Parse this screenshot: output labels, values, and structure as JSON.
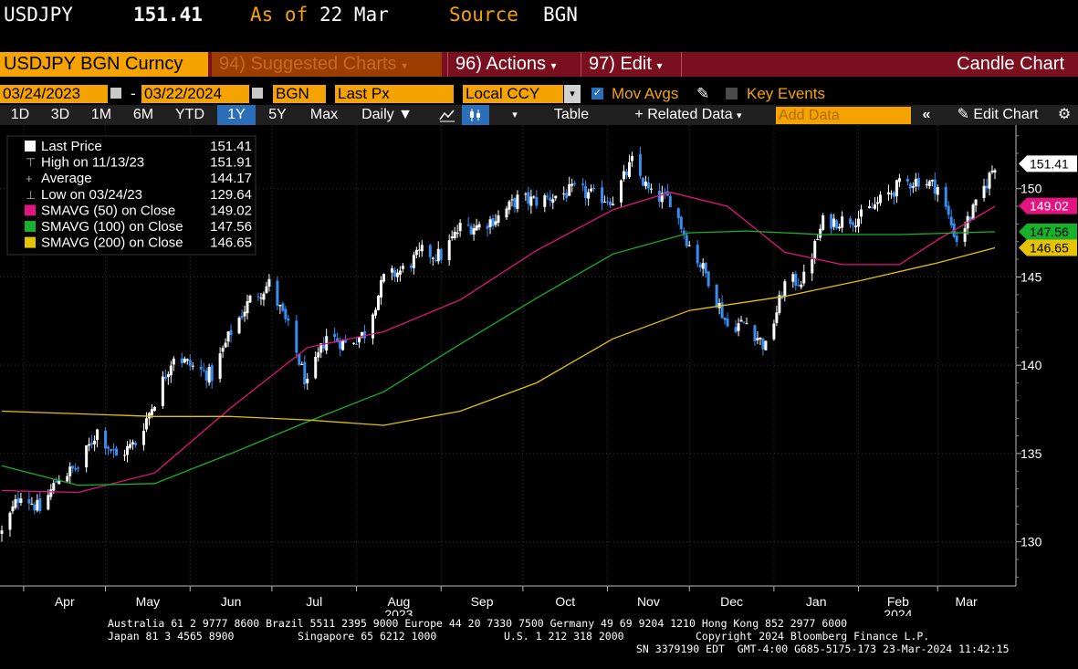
{
  "header": {
    "ticker": "USDJPY",
    "price": "151.41",
    "as_of_label": "As of",
    "as_of_date": "22 Mar",
    "source_label": "Source",
    "source_value": "BGN"
  },
  "toolbar": {
    "security": "USDJPY BGN Curncy",
    "suggested": "94) Suggested Charts",
    "actions": "96) Actions",
    "edit": "97) Edit",
    "chart_type": "Candle Chart"
  },
  "params": {
    "start_date": "03/24/2023",
    "dash": "-",
    "end_date": "03/22/2024",
    "source": "BGN",
    "field": "Last Px",
    "currency": "Local CCY",
    "mov_avgs": "Mov Avgs",
    "key_events": "Key Events"
  },
  "periods": {
    "items": [
      "1D",
      "3D",
      "1M",
      "6M",
      "YTD",
      "1Y",
      "5Y",
      "Max"
    ],
    "selected": "1Y",
    "frequency": "Daily",
    "table": "Table",
    "related": "+ Related Data",
    "add_data_placeholder": "Add Data",
    "edit_chart": "Edit Chart"
  },
  "colors": {
    "orange": "#f5a300",
    "candle_up": "#ffffff",
    "candle_down": "#3a8df0",
    "sma50": "#e2147f",
    "sma100": "#18b02c",
    "sma200": "#e6c300",
    "toolbar_red": "#7a0f20",
    "selected_blue": "#2a6fb7"
  },
  "legend": [
    {
      "label": "Last Price",
      "value": "151.41"
    },
    {
      "label": "High on 11/13/23",
      "value": "151.91"
    },
    {
      "label": "Average",
      "value": "144.17"
    },
    {
      "label": "Low on 03/24/23",
      "value": "129.64"
    },
    {
      "label": "SMAVG (50)  on Close",
      "value": "149.02"
    },
    {
      "label": "SMAVG (100)  on Close",
      "value": "147.56"
    },
    {
      "label": "SMAVG (200)  on Close",
      "value": "146.65"
    }
  ],
  "chart_data": {
    "type": "candlestick",
    "title": "USDJPY",
    "ylim": [
      127.5,
      153.5
    ],
    "yticks": [
      130,
      135,
      140,
      145,
      150
    ],
    "x_months": [
      "Apr",
      "May",
      "Jun",
      "Jul",
      "Aug",
      "Sep",
      "Oct",
      "Nov",
      "Dec",
      "Jan",
      "Feb",
      "Mar"
    ],
    "year_labels": [
      {
        "label": "2023",
        "month": "Aug"
      },
      {
        "label": "2024",
        "month": "Feb"
      }
    ],
    "x_range": [
      "2023-03-24",
      "2024-03-22"
    ],
    "close_path": [
      [
        "2023-03-24",
        130.5
      ],
      [
        "2023-03-31",
        132.8
      ],
      [
        "2023-04-07",
        131.8
      ],
      [
        "2023-04-14",
        133.7
      ],
      [
        "2023-04-21",
        134.2
      ],
      [
        "2023-04-28",
        136.3
      ],
      [
        "2023-05-05",
        134.8
      ],
      [
        "2023-05-12",
        135.6
      ],
      [
        "2023-05-19",
        138.0
      ],
      [
        "2023-05-26",
        140.6
      ],
      [
        "2023-06-02",
        139.9
      ],
      [
        "2023-06-09",
        139.4
      ],
      [
        "2023-06-16",
        141.9
      ],
      [
        "2023-06-23",
        143.7
      ],
      [
        "2023-06-30",
        144.6
      ],
      [
        "2023-07-07",
        142.1
      ],
      [
        "2023-07-14",
        138.8
      ],
      [
        "2023-07-21",
        141.7
      ],
      [
        "2023-07-28",
        141.2
      ],
      [
        "2023-08-04",
        141.8
      ],
      [
        "2023-08-11",
        144.9
      ],
      [
        "2023-08-18",
        145.4
      ],
      [
        "2023-08-25",
        146.4
      ],
      [
        "2023-09-01",
        146.2
      ],
      [
        "2023-09-08",
        147.8
      ],
      [
        "2023-09-15",
        147.9
      ],
      [
        "2023-09-22",
        148.4
      ],
      [
        "2023-09-29",
        149.4
      ],
      [
        "2023-10-06",
        149.3
      ],
      [
        "2023-10-13",
        149.6
      ],
      [
        "2023-10-20",
        149.9
      ],
      [
        "2023-10-27",
        149.6
      ],
      [
        "2023-11-03",
        149.4
      ],
      [
        "2023-11-10",
        151.5
      ],
      [
        "2023-11-17",
        149.6
      ],
      [
        "2023-11-24",
        149.4
      ],
      [
        "2023-12-01",
        146.8
      ],
      [
        "2023-12-08",
        144.9
      ],
      [
        "2023-12-15",
        142.2
      ],
      [
        "2023-12-22",
        142.4
      ],
      [
        "2023-12-29",
        141.0
      ],
      [
        "2024-01-05",
        144.6
      ],
      [
        "2024-01-12",
        144.9
      ],
      [
        "2024-01-19",
        148.1
      ],
      [
        "2024-01-26",
        148.2
      ],
      [
        "2024-02-02",
        148.4
      ],
      [
        "2024-02-09",
        149.3
      ],
      [
        "2024-02-16",
        150.2
      ],
      [
        "2024-02-23",
        150.5
      ],
      [
        "2024-03-01",
        150.1
      ],
      [
        "2024-03-08",
        147.1
      ],
      [
        "2024-03-15",
        149.0
      ],
      [
        "2024-03-22",
        151.4
      ]
    ],
    "series": [
      {
        "name": "SMAVG (50)",
        "points": [
          [
            "2023-03-24",
            132.9
          ],
          [
            "2023-04-21",
            132.8
          ],
          [
            "2023-05-19",
            133.9
          ],
          [
            "2023-06-16",
            137.6
          ],
          [
            "2023-07-14",
            141.0
          ],
          [
            "2023-08-11",
            141.9
          ],
          [
            "2023-09-08",
            143.7
          ],
          [
            "2023-10-06",
            146.5
          ],
          [
            "2023-11-03",
            148.8
          ],
          [
            "2023-11-24",
            149.8
          ],
          [
            "2023-12-15",
            149.0
          ],
          [
            "2024-01-05",
            146.4
          ],
          [
            "2024-01-26",
            145.7
          ],
          [
            "2024-02-16",
            145.7
          ],
          [
            "2024-03-01",
            147.1
          ],
          [
            "2024-03-22",
            149.0
          ]
        ]
      },
      {
        "name": "SMAVG (100)",
        "points": [
          [
            "2023-03-24",
            134.3
          ],
          [
            "2023-04-21",
            133.2
          ],
          [
            "2023-05-19",
            133.3
          ],
          [
            "2023-06-16",
            135.0
          ],
          [
            "2023-07-14",
            136.8
          ],
          [
            "2023-08-11",
            138.5
          ],
          [
            "2023-09-08",
            141.2
          ],
          [
            "2023-10-06",
            143.8
          ],
          [
            "2023-11-03",
            146.3
          ],
          [
            "2023-12-01",
            147.5
          ],
          [
            "2023-12-22",
            147.6
          ],
          [
            "2024-01-19",
            147.4
          ],
          [
            "2024-02-16",
            147.4
          ],
          [
            "2024-03-22",
            147.56
          ]
        ]
      },
      {
        "name": "SMAVG (200)",
        "points": [
          [
            "2023-03-24",
            137.4
          ],
          [
            "2023-05-19",
            137.1
          ],
          [
            "2023-06-16",
            137.1
          ],
          [
            "2023-07-14",
            136.9
          ],
          [
            "2023-08-11",
            136.6
          ],
          [
            "2023-09-08",
            137.4
          ],
          [
            "2023-10-06",
            139.0
          ],
          [
            "2023-11-03",
            141.5
          ],
          [
            "2023-12-01",
            143.1
          ],
          [
            "2024-01-05",
            143.9
          ],
          [
            "2024-02-02",
            144.8
          ],
          [
            "2024-03-01",
            145.8
          ],
          [
            "2024-03-22",
            146.65
          ]
        ]
      }
    ],
    "right_labels": [
      {
        "value": 151.41,
        "text": "151.41"
      },
      {
        "value": 149.02,
        "text": "149.02"
      },
      {
        "value": 147.56,
        "text": "147.56"
      },
      {
        "value": 146.65,
        "text": "146.65"
      }
    ]
  },
  "footer": {
    "line1": "Australia 61 2 9777 8600 Brazil 5511 2395 9000 Europe 44 20 7330 7500 Germany 49 69 9204 1210 Hong Kong 852 2977 6000",
    "line2a": "Japan 81 3 4565 8900",
    "line2b": "Singapore 65 6212 1000",
    "line2c": "U.S. 1 212 318 2000",
    "line2d": "Copyright 2024 Bloomberg Finance L.P.",
    "line3": "SN 3379190 EDT  GMT-4:00 G685-5175-173 23-Mar-2024 11:42:15"
  }
}
